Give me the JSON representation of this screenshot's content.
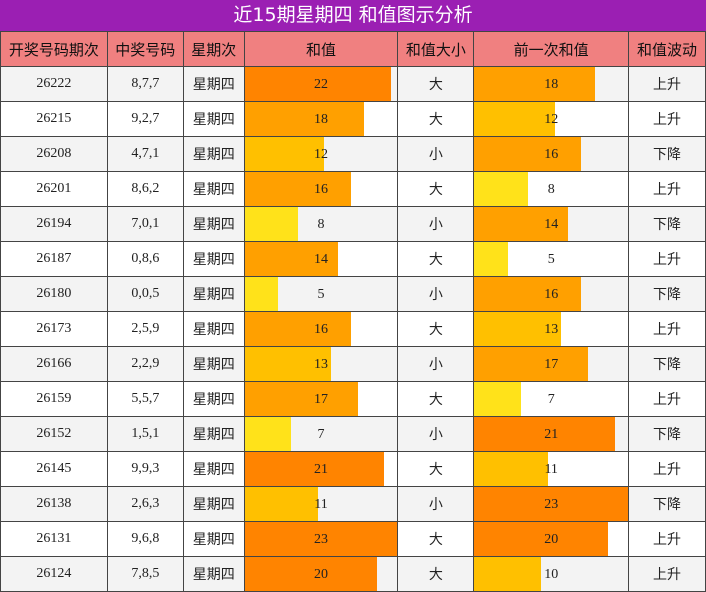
{
  "title": "近15期星期四 和值图示分析",
  "headers": [
    "开奖号码期次",
    "中奖号码",
    "星期次",
    "和值",
    "和值大小",
    "前一次和值",
    "和值波动"
  ],
  "max_sum": 23,
  "rows": [
    {
      "issue": "26222",
      "numbers": "8,7,7",
      "weekday": "星期四",
      "sum": 22,
      "size": "大",
      "prev_sum": 18,
      "trend": "上升"
    },
    {
      "issue": "26215",
      "numbers": "9,2,7",
      "weekday": "星期四",
      "sum": 18,
      "size": "大",
      "prev_sum": 12,
      "trend": "上升"
    },
    {
      "issue": "26208",
      "numbers": "4,7,1",
      "weekday": "星期四",
      "sum": 12,
      "size": "小",
      "prev_sum": 16,
      "trend": "下降"
    },
    {
      "issue": "26201",
      "numbers": "8,6,2",
      "weekday": "星期四",
      "sum": 16,
      "size": "大",
      "prev_sum": 8,
      "trend": "上升"
    },
    {
      "issue": "26194",
      "numbers": "7,0,1",
      "weekday": "星期四",
      "sum": 8,
      "size": "小",
      "prev_sum": 14,
      "trend": "下降"
    },
    {
      "issue": "26187",
      "numbers": "0,8,6",
      "weekday": "星期四",
      "sum": 14,
      "size": "大",
      "prev_sum": 5,
      "trend": "上升"
    },
    {
      "issue": "26180",
      "numbers": "0,0,5",
      "weekday": "星期四",
      "sum": 5,
      "size": "小",
      "prev_sum": 16,
      "trend": "下降"
    },
    {
      "issue": "26173",
      "numbers": "2,5,9",
      "weekday": "星期四",
      "sum": 16,
      "size": "大",
      "prev_sum": 13,
      "trend": "上升"
    },
    {
      "issue": "26166",
      "numbers": "2,2,9",
      "weekday": "星期四",
      "sum": 13,
      "size": "小",
      "prev_sum": 17,
      "trend": "下降"
    },
    {
      "issue": "26159",
      "numbers": "5,5,7",
      "weekday": "星期四",
      "sum": 17,
      "size": "大",
      "prev_sum": 7,
      "trend": "上升"
    },
    {
      "issue": "26152",
      "numbers": "1,5,1",
      "weekday": "星期四",
      "sum": 7,
      "size": "小",
      "prev_sum": 21,
      "trend": "下降"
    },
    {
      "issue": "26145",
      "numbers": "9,9,3",
      "weekday": "星期四",
      "sum": 21,
      "size": "大",
      "prev_sum": 11,
      "trend": "上升"
    },
    {
      "issue": "26138",
      "numbers": "2,6,3",
      "weekday": "星期四",
      "sum": 11,
      "size": "小",
      "prev_sum": 23,
      "trend": "下降"
    },
    {
      "issue": "26131",
      "numbers": "9,6,8",
      "weekday": "星期四",
      "sum": 23,
      "size": "大",
      "prev_sum": 20,
      "trend": "上升"
    },
    {
      "issue": "26124",
      "numbers": "7,8,5",
      "weekday": "星期四",
      "sum": 20,
      "size": "大",
      "prev_sum": 10,
      "trend": "上升"
    }
  ],
  "colors": {
    "title_bg": "#9b1fb3",
    "header_bg": "#f08080",
    "bar_low": "#ffe21a",
    "bar_mid": "#ffc000",
    "bar_high": "#ffa000",
    "bar_top": "#ff8400"
  }
}
